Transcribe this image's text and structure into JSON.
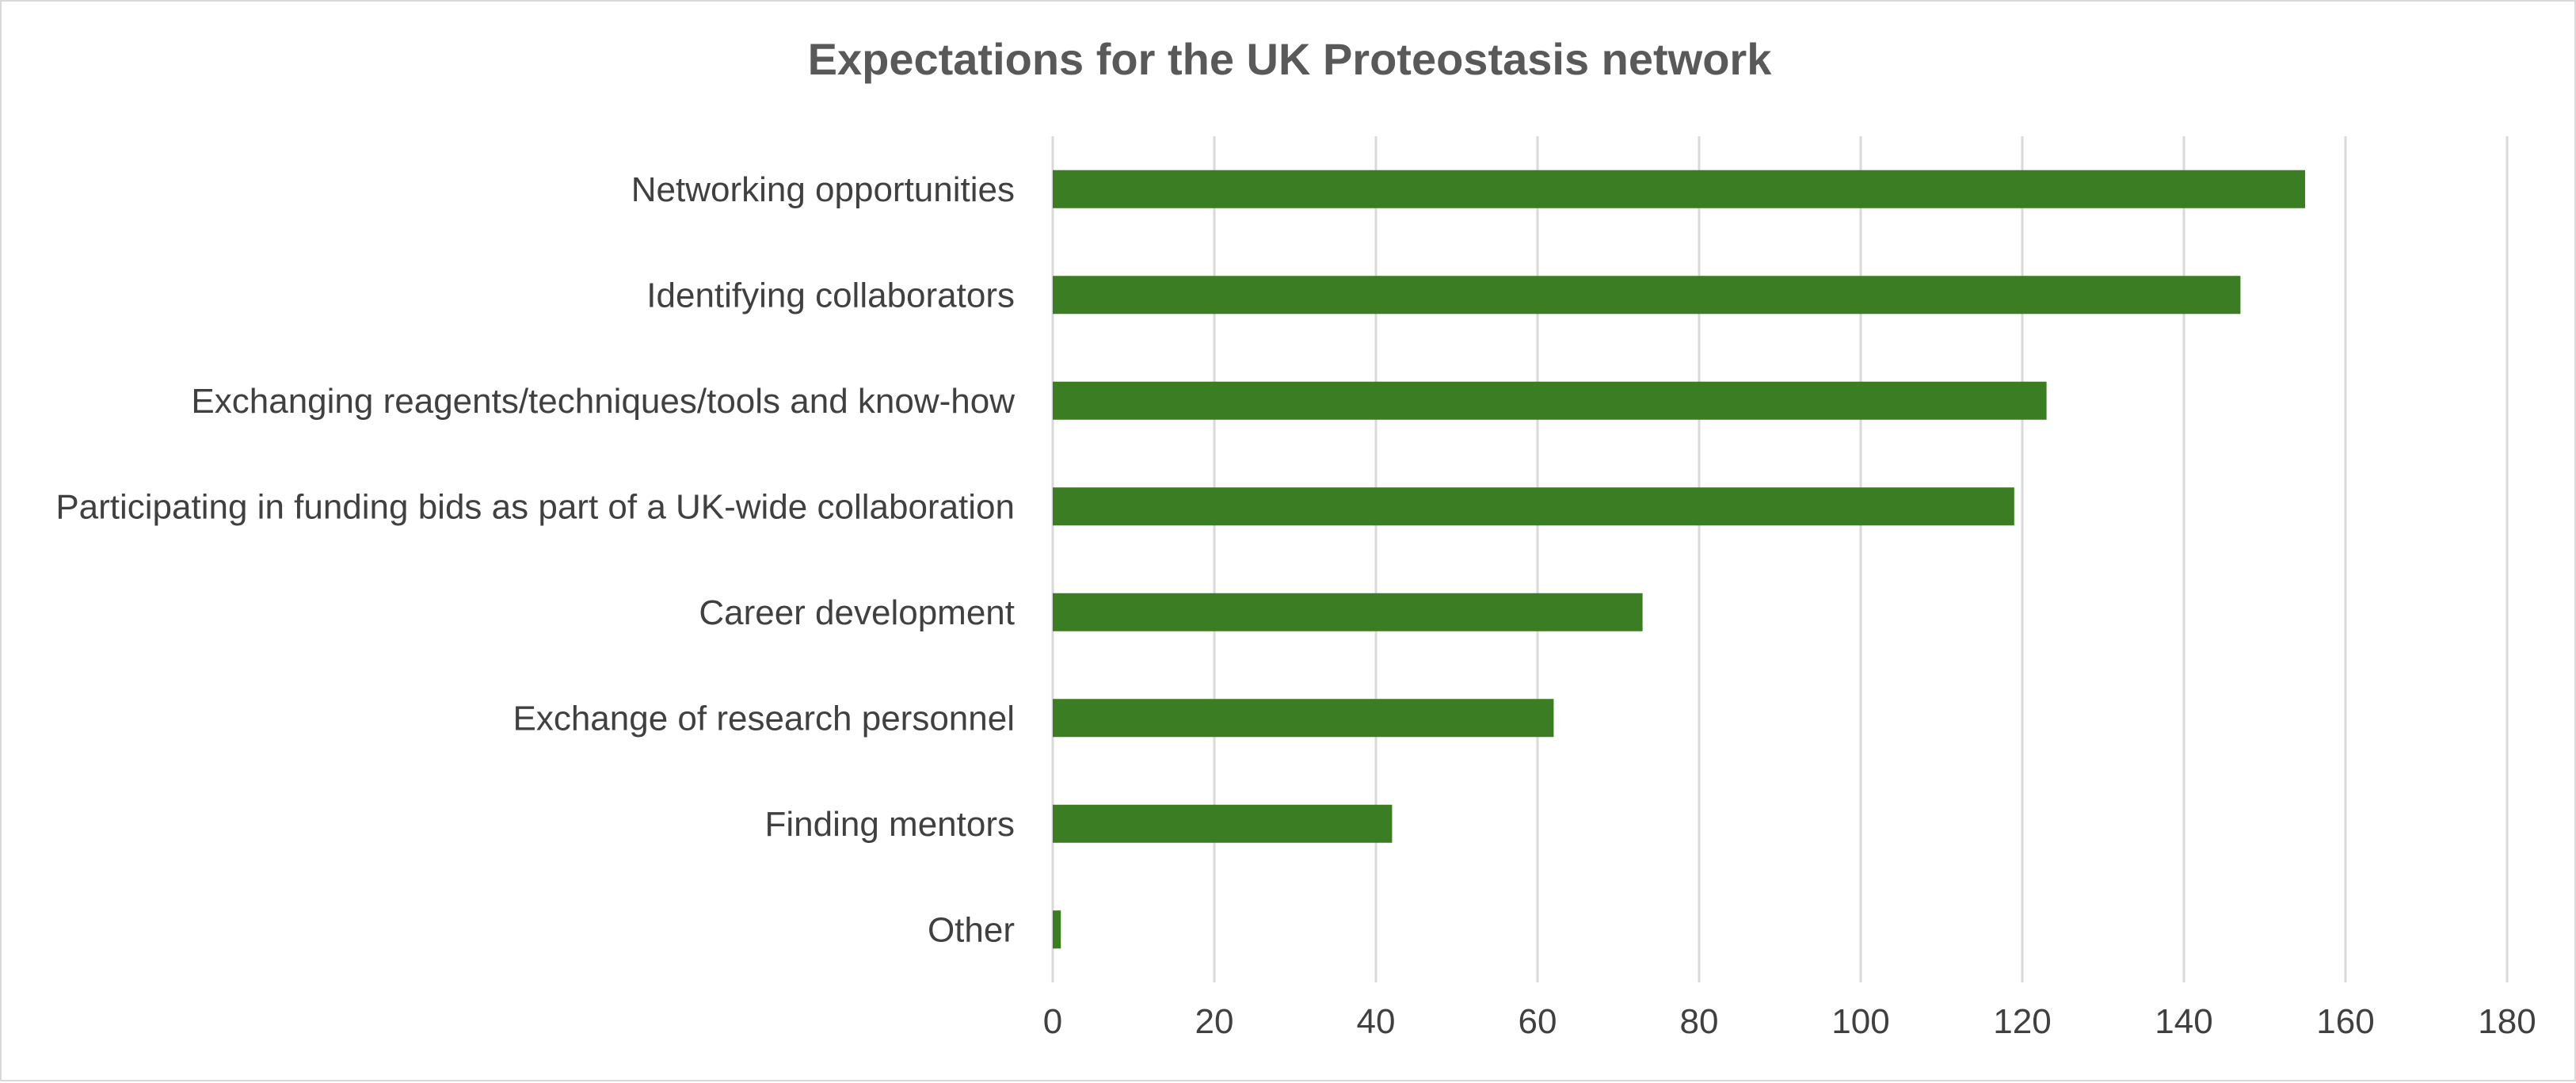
{
  "chart_data": {
    "type": "bar",
    "orientation": "horizontal",
    "title": "Expectations for the UK Proteostasis network",
    "categories": [
      "Networking opportunities",
      "Identifying collaborators",
      "Exchanging reagents/techniques/tools and know-how",
      "Participating in funding bids as part of a UK-wide collaboration",
      "Career development",
      "Exchange of research personnel",
      "Finding mentors",
      "Other"
    ],
    "values": [
      155,
      147,
      123,
      119,
      73,
      62,
      42,
      1
    ],
    "xlim": [
      0,
      180
    ],
    "x_ticks": [
      0,
      20,
      40,
      60,
      80,
      100,
      120,
      140,
      160,
      180
    ],
    "xlabel": "",
    "ylabel": "",
    "grid": "vertical",
    "legend": "none",
    "bar_color": "#3a7d22"
  }
}
